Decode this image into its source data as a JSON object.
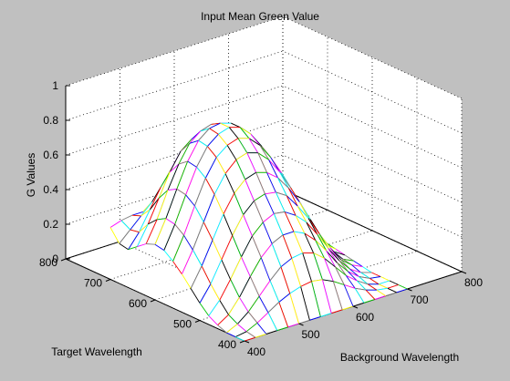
{
  "chart_data": {
    "type": "surface",
    "title": "Input Mean Green Value",
    "xlabel": "Background Wavelength",
    "ylabel": "Target Wavelength",
    "zlabel": "G Values",
    "xlim": [
      400,
      800
    ],
    "ylim": [
      400,
      800
    ],
    "zlim": [
      0,
      1
    ],
    "xticks": [
      400,
      500,
      600,
      700,
      800
    ],
    "yticks": [
      400,
      500,
      600,
      700,
      800
    ],
    "zticks": [
      0,
      0.2,
      0.4,
      0.6,
      0.8,
      1
    ],
    "x": [
      400,
      420,
      440,
      460,
      480,
      500,
      520,
      540,
      560,
      580,
      600,
      620,
      640,
      660,
      680,
      700
    ],
    "y": [
      400,
      420,
      440,
      460,
      480,
      500,
      520,
      540,
      560,
      580,
      600,
      620,
      640,
      660,
      680,
      700
    ],
    "z": [
      [
        0.0,
        0.0,
        0.0,
        0.0,
        0.0,
        0.0,
        0.0,
        0.0,
        0.0,
        0.0,
        0.0,
        0.0,
        0.0,
        0.0,
        0.0,
        0.0
      ],
      [
        0.0,
        0.01,
        0.04,
        0.08,
        0.12,
        0.15,
        0.17,
        0.18,
        0.17,
        0.14,
        0.1,
        0.06,
        0.03,
        0.01,
        0.0,
        0.0
      ],
      [
        0.0,
        0.03,
        0.08,
        0.15,
        0.22,
        0.28,
        0.31,
        0.32,
        0.3,
        0.25,
        0.18,
        0.11,
        0.06,
        0.02,
        0.0,
        0.0
      ],
      [
        0.02,
        0.06,
        0.14,
        0.24,
        0.33,
        0.39,
        0.42,
        0.42,
        0.39,
        0.33,
        0.25,
        0.16,
        0.09,
        0.04,
        0.01,
        0.0
      ],
      [
        0.05,
        0.12,
        0.22,
        0.33,
        0.43,
        0.49,
        0.52,
        0.51,
        0.47,
        0.41,
        0.32,
        0.22,
        0.13,
        0.06,
        0.02,
        0.0
      ],
      [
        0.1,
        0.19,
        0.31,
        0.43,
        0.53,
        0.59,
        0.61,
        0.6,
        0.56,
        0.48,
        0.39,
        0.28,
        0.18,
        0.09,
        0.04,
        0.01
      ],
      [
        0.16,
        0.27,
        0.4,
        0.53,
        0.63,
        0.69,
        0.71,
        0.69,
        0.64,
        0.56,
        0.46,
        0.34,
        0.22,
        0.12,
        0.05,
        0.02
      ],
      [
        0.22,
        0.34,
        0.48,
        0.62,
        0.72,
        0.78,
        0.8,
        0.78,
        0.72,
        0.63,
        0.52,
        0.4,
        0.27,
        0.15,
        0.07,
        0.03
      ],
      [
        0.27,
        0.4,
        0.55,
        0.69,
        0.79,
        0.84,
        0.86,
        0.84,
        0.78,
        0.69,
        0.58,
        0.45,
        0.31,
        0.18,
        0.09,
        0.04
      ],
      [
        0.31,
        0.44,
        0.59,
        0.73,
        0.83,
        0.88,
        0.9,
        0.88,
        0.82,
        0.73,
        0.61,
        0.48,
        0.34,
        0.2,
        0.1,
        0.05
      ],
      [
        0.32,
        0.45,
        0.6,
        0.74,
        0.84,
        0.89,
        0.9,
        0.88,
        0.83,
        0.74,
        0.62,
        0.49,
        0.35,
        0.21,
        0.11,
        0.05
      ],
      [
        0.3,
        0.42,
        0.57,
        0.7,
        0.8,
        0.85,
        0.87,
        0.85,
        0.8,
        0.71,
        0.6,
        0.47,
        0.34,
        0.2,
        0.1,
        0.05
      ],
      [
        0.26,
        0.37,
        0.5,
        0.63,
        0.73,
        0.78,
        0.8,
        0.79,
        0.74,
        0.66,
        0.56,
        0.44,
        0.31,
        0.19,
        0.09,
        0.04
      ],
      [
        0.22,
        0.3,
        0.41,
        0.52,
        0.61,
        0.66,
        0.68,
        0.67,
        0.64,
        0.57,
        0.49,
        0.39,
        0.28,
        0.17,
        0.08,
        0.04
      ],
      [
        0.23,
        0.29,
        0.35,
        0.41,
        0.47,
        0.52,
        0.55,
        0.56,
        0.54,
        0.49,
        0.43,
        0.35,
        0.25,
        0.15,
        0.07,
        0.03
      ],
      [
        0.3,
        0.32,
        0.33,
        0.33,
        0.32,
        0.3,
        0.29,
        0.29,
        0.29,
        0.28,
        0.25,
        0.21,
        0.16,
        0.1,
        0.05,
        0.02
      ]
    ]
  },
  "line_colors": [
    "#ff0000",
    "#00c000",
    "#0000ff",
    "#ffff00",
    "#ff00ff",
    "#00ffff",
    "#000000",
    "#808080"
  ]
}
